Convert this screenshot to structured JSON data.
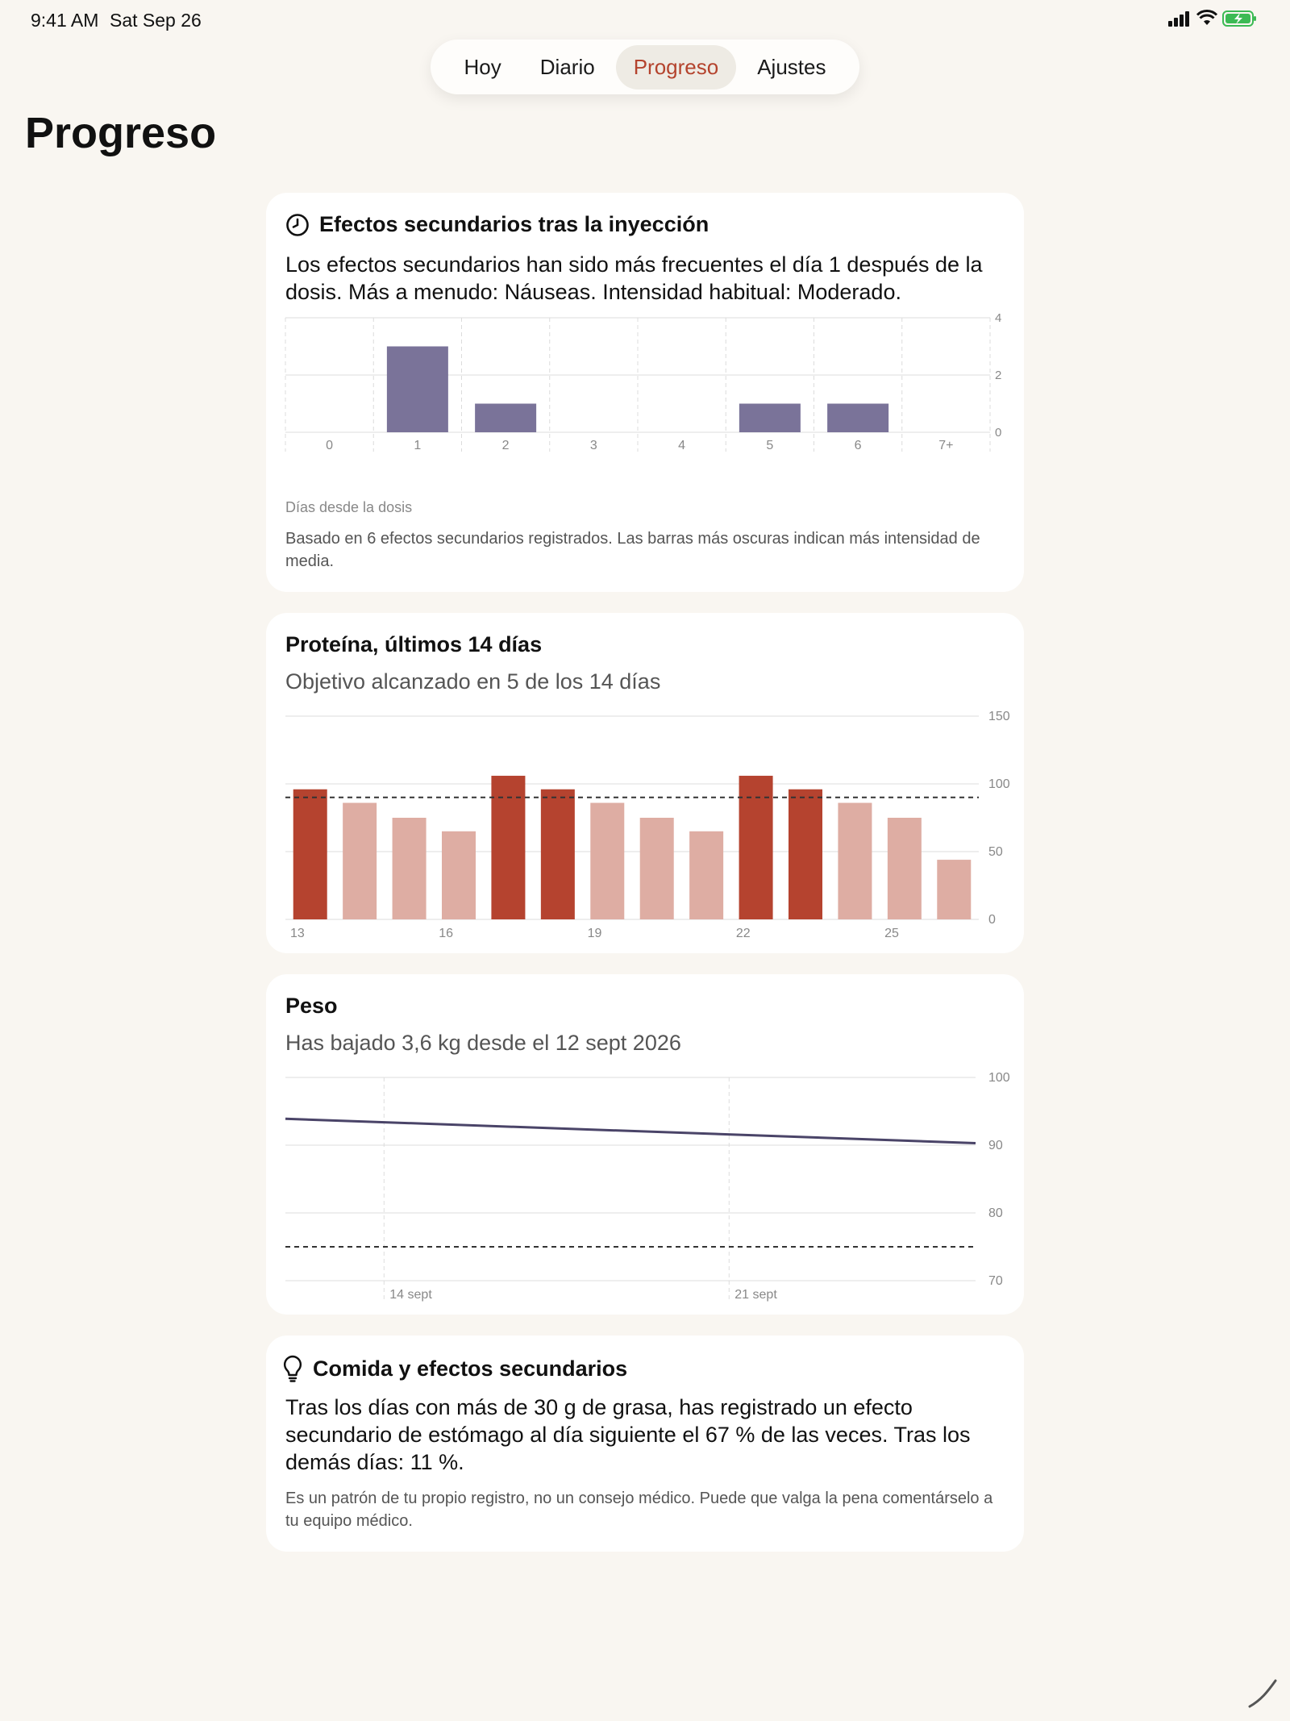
{
  "status_bar": {
    "time": "9:41 AM",
    "date": "Sat Sep 26"
  },
  "tabs": [
    {
      "label": "Hoy",
      "active": false
    },
    {
      "label": "Diario",
      "active": false
    },
    {
      "label": "Progreso",
      "active": true
    },
    {
      "label": "Ajustes",
      "active": false
    }
  ],
  "page_title": "Progreso",
  "side_effects": {
    "icon": "clock-icon",
    "title": "Efectos secundarios tras la inyección",
    "body": "Los efectos secundarios han sido más frecuentes el día 1 después de la dosis. Más a menudo: Náuseas. Intensidad habitual: Moderado.",
    "axis_caption": "Días desde la dosis",
    "note": "Basado en 6 efectos secundarios registrados. Las barras más oscuras indican más intensidad de media."
  },
  "protein": {
    "title": "Proteína, últimos 14 días",
    "subtitle": "Objetivo alcanzado en 5 de los 14 días"
  },
  "weight": {
    "title": "Peso",
    "subtitle": "Has bajado 3,6 kg desde el 12 sept 2026"
  },
  "food": {
    "icon": "lightbulb-icon",
    "title": "Comida y efectos secundarios",
    "body": "Tras los días con más de 30 g de grasa, has registrado un efecto secundario de estómago al día siguiente el 67 % de las veces. Tras los demás días: 11 %.",
    "note": "Es un patrón de tu propio registro, no un consejo médico. Puede que valga la pena comentárselo a tu equipo médico."
  },
  "colors": {
    "accent": "#b4432d",
    "side_effect_bar": "#7a7399",
    "protein_hit": "#b5432f",
    "protein_miss": "#deada3",
    "weight_line": "#4a4468"
  },
  "chart_data": [
    {
      "type": "bar",
      "categories": [
        "0",
        "1",
        "2",
        "3",
        "4",
        "5",
        "6",
        "7+"
      ],
      "values": [
        0,
        3,
        1,
        0,
        0,
        1,
        1,
        0
      ],
      "xlabel": "Días desde la dosis",
      "ylim": [
        0,
        4
      ],
      "yticks": [
        0,
        2,
        4
      ],
      "grid": true
    },
    {
      "type": "bar",
      "x": [
        13,
        14,
        15,
        16,
        17,
        18,
        19,
        20,
        21,
        22,
        23,
        24,
        25,
        26
      ],
      "values": [
        96,
        86,
        75,
        65,
        106,
        96,
        86,
        75,
        65,
        106,
        96,
        86,
        75,
        44
      ],
      "goal_met": [
        true,
        false,
        false,
        false,
        true,
        true,
        false,
        false,
        false,
        true,
        true,
        false,
        false,
        false
      ],
      "goal": 90,
      "xticks": [
        "13",
        "16",
        "19",
        "22",
        "25"
      ],
      "ylim": [
        0,
        150
      ],
      "yticks": [
        0,
        50,
        100,
        150
      ],
      "grid": true
    },
    {
      "type": "line",
      "x": [
        "2026-09-12",
        "2026-09-26"
      ],
      "values": [
        93.9,
        90.3
      ],
      "goal": 75,
      "xticks": [
        "14 sept",
        "21 sept"
      ],
      "ylim": [
        70,
        100
      ],
      "yticks": [
        70,
        80,
        90,
        100
      ],
      "grid": true
    }
  ]
}
